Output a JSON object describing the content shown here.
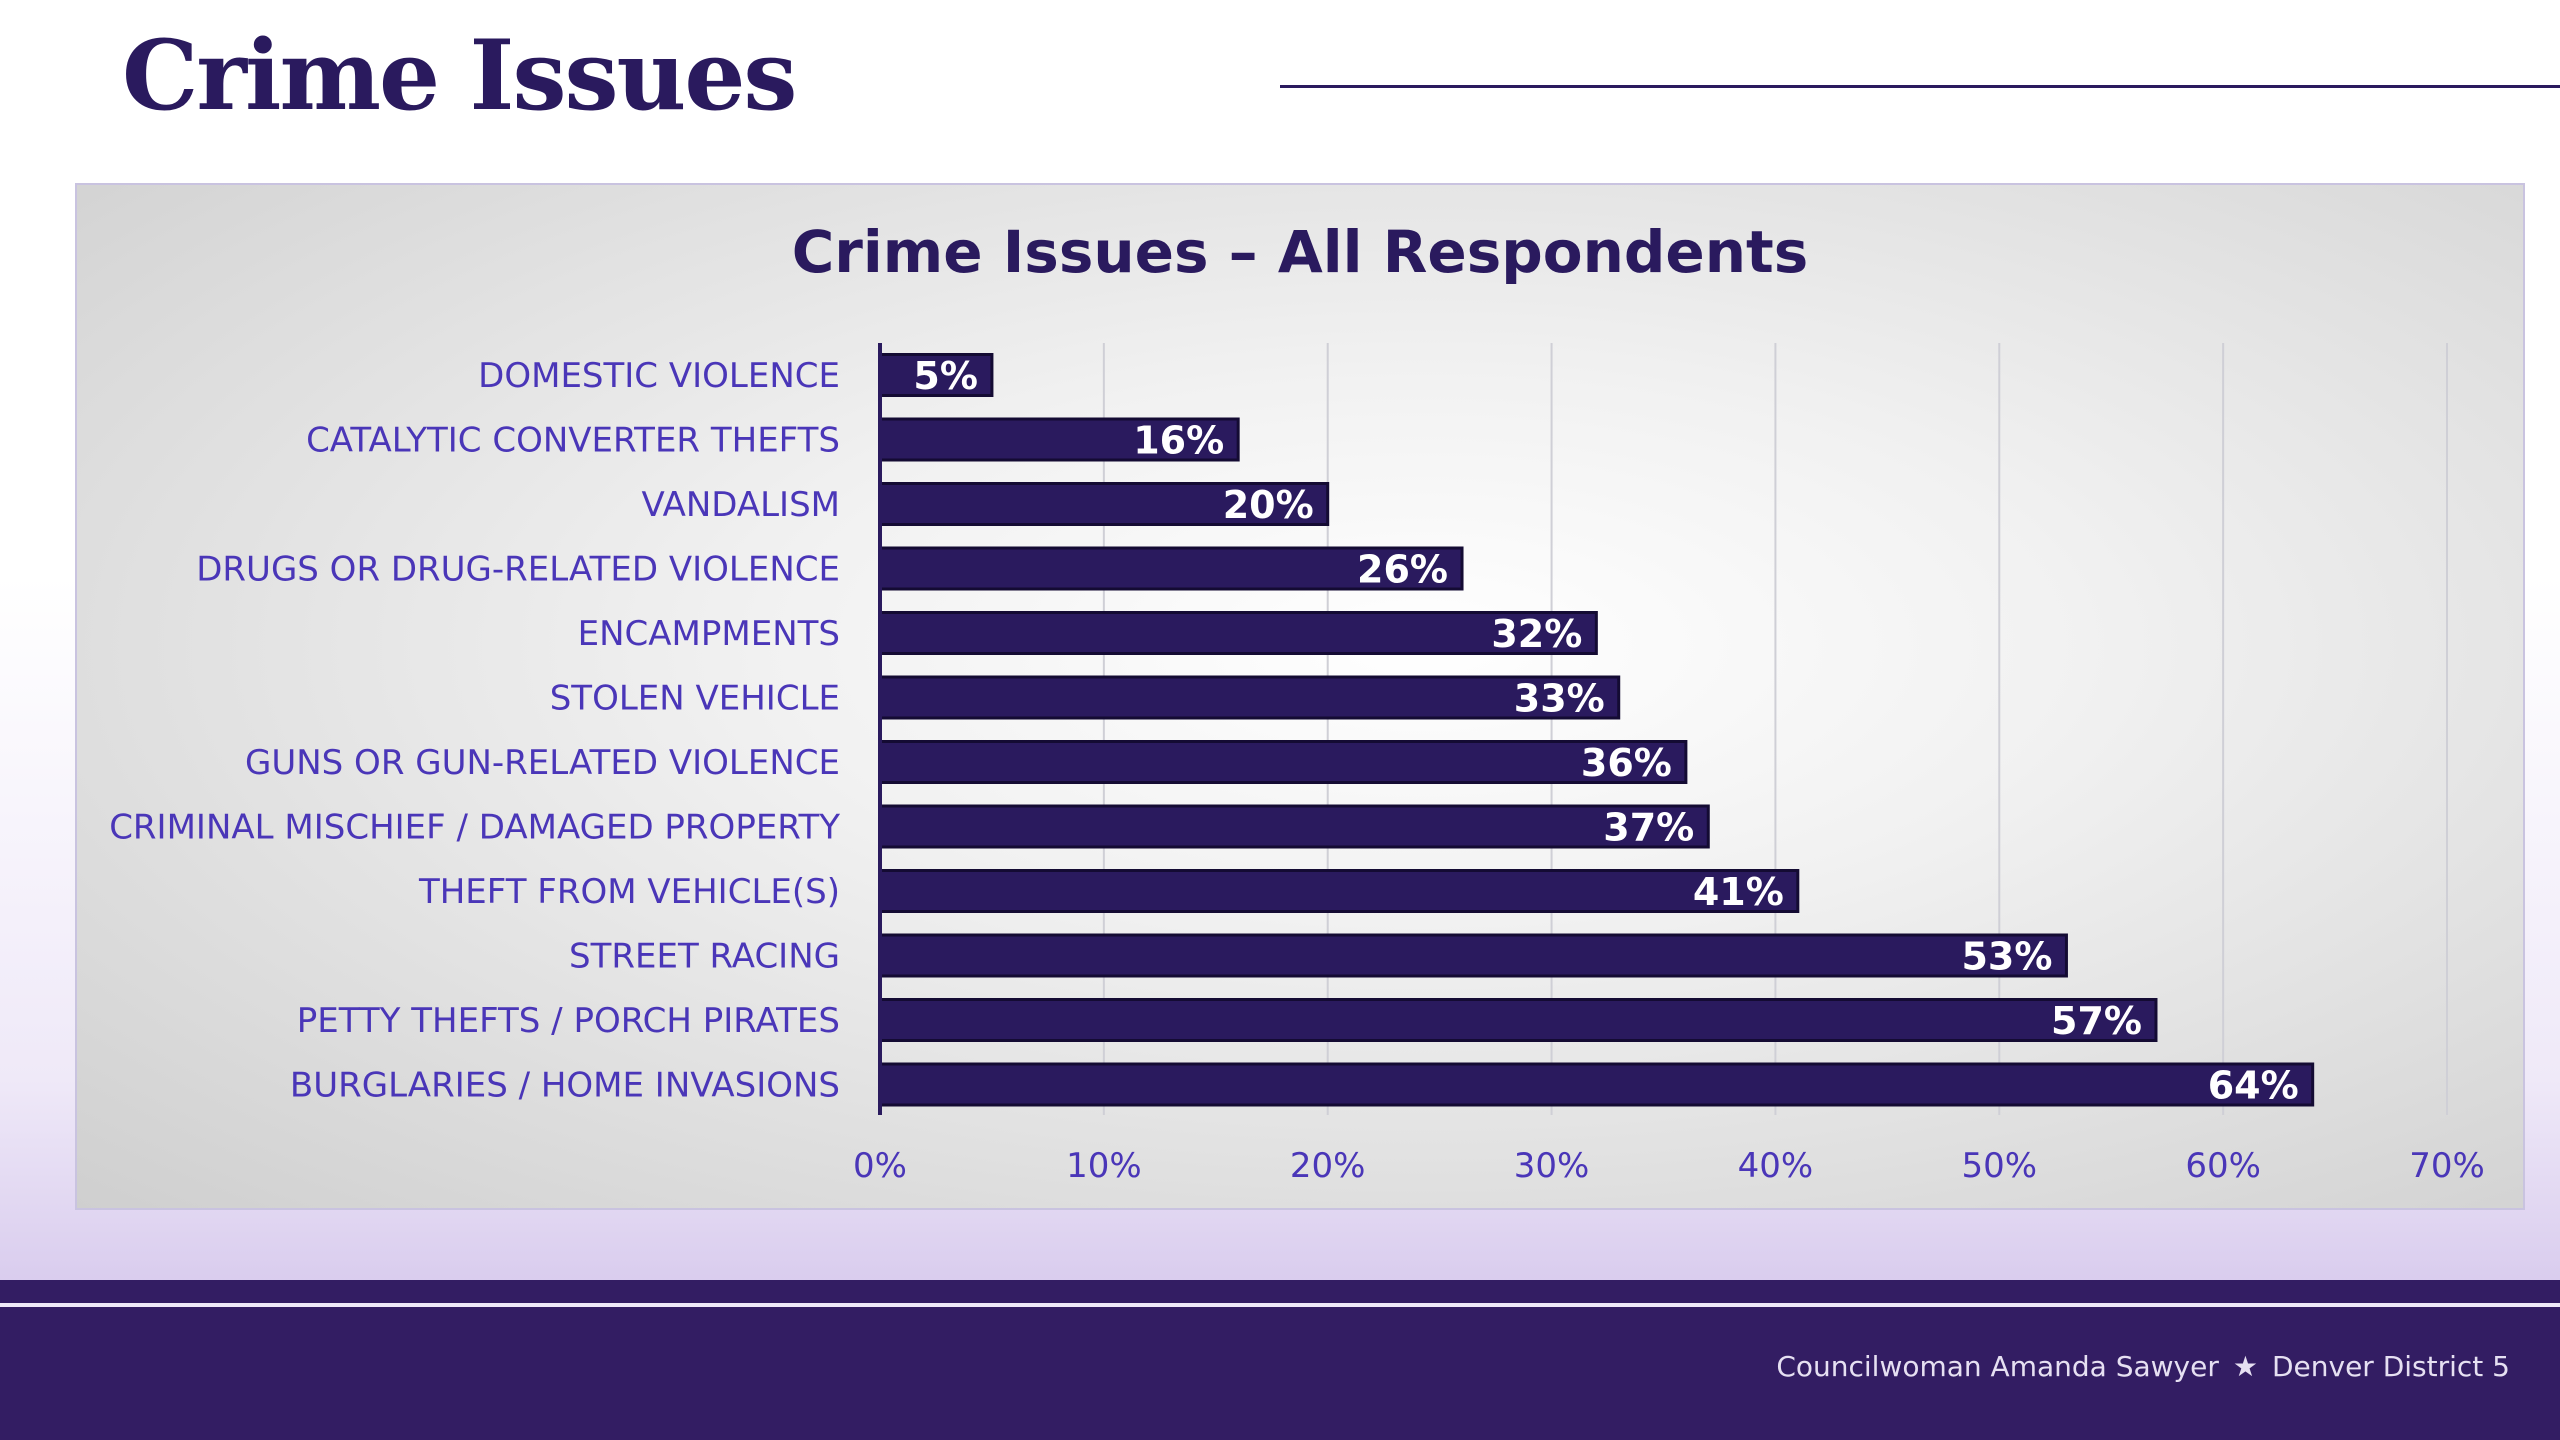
{
  "slide": {
    "title": "Crime Issues"
  },
  "footer": {
    "name": "Councilwoman Amanda Sawyer",
    "separator": "★",
    "district": "Denver District 5"
  },
  "chart_data": {
    "type": "bar",
    "orientation": "horizontal",
    "title": "Crime Issues – All Respondents",
    "xlabel": "",
    "ylabel": "",
    "categories": [
      "DOMESTIC VIOLENCE",
      "CATALYTIC CONVERTER THEFTS",
      "VANDALISM",
      "DRUGS OR DRUG-RELATED VIOLENCE",
      "ENCAMPMENTS",
      "STOLEN VEHICLE",
      "GUNS OR GUN-RELATED VIOLENCE",
      "CRIMINAL MISCHIEF / DAMAGED PROPERTY",
      "THEFT FROM VEHICLE(S)",
      "STREET RACING",
      "PETTY THEFTS / PORCH PIRATES",
      "BURGLARIES / HOME INVASIONS"
    ],
    "values": [
      5,
      16,
      20,
      26,
      32,
      33,
      36,
      37,
      41,
      53,
      57,
      64
    ],
    "value_labels": [
      "5%",
      "16%",
      "20%",
      "26%",
      "32%",
      "33%",
      "36%",
      "37%",
      "41%",
      "53%",
      "57%",
      "64%"
    ],
    "xlim": [
      0,
      70
    ],
    "xticks": [
      "0%",
      "10%",
      "20%",
      "30%",
      "40%",
      "50%",
      "60%",
      "70%"
    ],
    "grid": true,
    "bar_color": "#2a1a5e",
    "label_color": "#4a36b8"
  }
}
